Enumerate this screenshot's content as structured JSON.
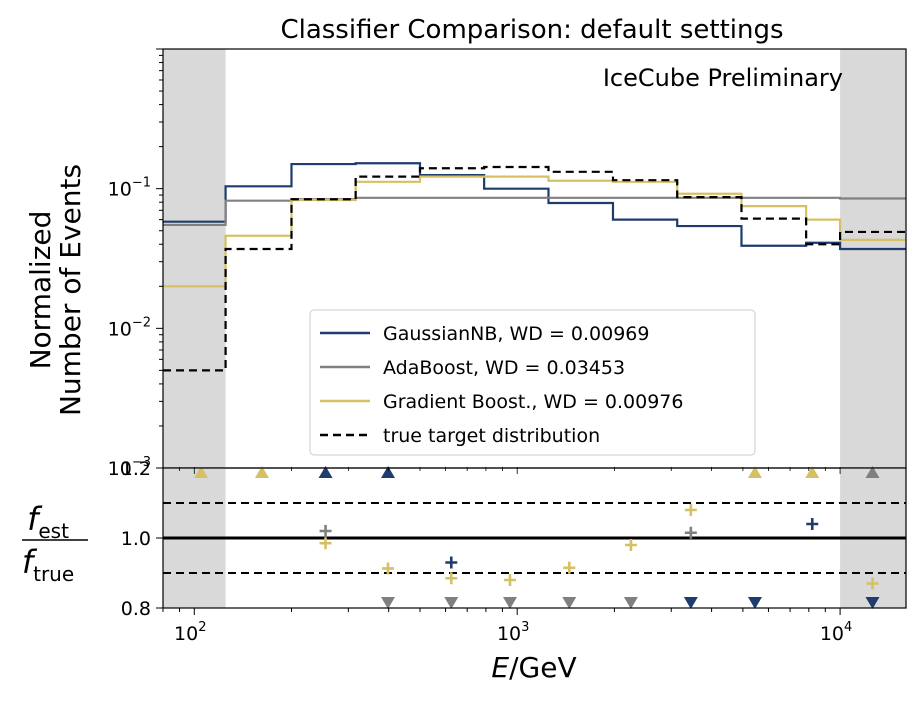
{
  "chart_data": [
    {
      "type": "line",
      "title": "Classifier Comparison: default settings",
      "annotation": "IceCube Preliminary",
      "annotation_color": "#ff0000",
      "ylabel_line1": "Normalized",
      "ylabel_line2": "Number of Events",
      "yscale": "log",
      "xscale": "log",
      "xlim": [
        80,
        16000
      ],
      "ylim": [
        0.001,
        1
      ],
      "ytick_labels": [
        {
          "base": "10",
          "exp": "−1",
          "value": 0.1
        },
        {
          "base": "10",
          "exp": "−2",
          "value": 0.01
        },
        {
          "base": "10",
          "exp": "−3",
          "value": 0.001
        }
      ],
      "shaded_regions": [
        [
          80,
          125
        ],
        [
          10000,
          16000
        ]
      ],
      "bin_edges": [
        80,
        125,
        200,
        316,
        500,
        790,
        1250,
        1980,
        3130,
        4950,
        7850,
        10000,
        16000
      ],
      "series": [
        {
          "name": "GaussianNB, WD = 0.00969",
          "color": "#1f3c6e",
          "dash": false,
          "values": [
            0.058,
            0.104,
            0.15,
            0.152,
            0.125,
            0.1,
            0.079,
            0.06,
            0.054,
            0.039,
            0.041,
            0.037
          ]
        },
        {
          "name": "AdaBoost, WD = 0.03453",
          "color": "#808080",
          "dash": false,
          "values": [
            0.055,
            0.082,
            0.084,
            0.086,
            0.086,
            0.086,
            0.086,
            0.086,
            0.086,
            0.086,
            0.086,
            0.085
          ]
        },
        {
          "name": "Gradient Boost., WD = 0.00976",
          "color": "#d6c064",
          "dash": false,
          "values": [
            0.02,
            0.046,
            0.083,
            0.112,
            0.122,
            0.122,
            0.114,
            0.112,
            0.092,
            0.075,
            0.06,
            0.043
          ]
        },
        {
          "name": "true target distribution",
          "color": "#000000",
          "dash": true,
          "values": [
            0.005,
            0.037,
            0.084,
            0.122,
            0.14,
            0.143,
            0.132,
            0.115,
            0.087,
            0.061,
            0.04,
            0.049
          ]
        }
      ],
      "legend": "lower right"
    },
    {
      "type": "scatter",
      "xlabel": "E/GeV",
      "ylabel_num": "f",
      "ylabel_num_sub": "est",
      "ylabel_den": "f",
      "ylabel_den_sub": "true",
      "ylim": [
        0.8,
        1.2
      ],
      "yticks": [
        "1.2",
        "1.0",
        "0.8"
      ],
      "xticks": [
        {
          "base": "10",
          "exp": "2",
          "value": 100
        },
        {
          "base": "10",
          "exp": "3",
          "value": 1000
        },
        {
          "base": "10",
          "exp": "4",
          "value": 10000
        }
      ],
      "reference_lines": {
        "solid": 1.0,
        "dashed": [
          1.1,
          0.9
        ]
      },
      "points": [
        {
          "series": "Gradient Boost.",
          "x": 105,
          "y": 1.2,
          "marker": "up",
          "color": "#d6c064"
        },
        {
          "series": "Gradient Boost.",
          "x": 162,
          "y": 1.2,
          "marker": "up",
          "color": "#d6c064"
        },
        {
          "series": "GaussianNB",
          "x": 255,
          "y": 1.2,
          "marker": "up",
          "color": "#1f3c6e"
        },
        {
          "series": "GaussianNB",
          "x": 398,
          "y": 1.2,
          "marker": "up",
          "color": "#1f3c6e"
        },
        {
          "series": "Gradient Boost.",
          "x": 5450,
          "y": 1.2,
          "marker": "up",
          "color": "#d6c064"
        },
        {
          "series": "Gradient Boost.",
          "x": 8200,
          "y": 1.2,
          "marker": "up",
          "color": "#d6c064"
        },
        {
          "series": "AdaBoost",
          "x": 12600,
          "y": 1.2,
          "marker": "up",
          "color": "#808080"
        },
        {
          "series": "AdaBoost",
          "x": 255,
          "y": 1.02,
          "marker": "plus",
          "color": "#808080"
        },
        {
          "series": "Gradient Boost.",
          "x": 255,
          "y": 0.985,
          "marker": "plus",
          "color": "#d6c064"
        },
        {
          "series": "Gradient Boost.",
          "x": 398,
          "y": 0.913,
          "marker": "plus",
          "color": "#d6c064"
        },
        {
          "series": "AdaBoost",
          "x": 398,
          "y": 0.8,
          "marker": "down",
          "color": "#808080"
        },
        {
          "series": "GaussianNB",
          "x": 625,
          "y": 0.93,
          "marker": "plus",
          "color": "#1f3c6e"
        },
        {
          "series": "Gradient Boost.",
          "x": 625,
          "y": 0.885,
          "marker": "plus",
          "color": "#d6c064"
        },
        {
          "series": "AdaBoost",
          "x": 625,
          "y": 0.8,
          "marker": "down",
          "color": "#808080"
        },
        {
          "series": "Gradient Boost.",
          "x": 950,
          "y": 0.88,
          "marker": "plus",
          "color": "#d6c064"
        },
        {
          "series": "AdaBoost",
          "x": 950,
          "y": 0.8,
          "marker": "down",
          "color": "#808080"
        },
        {
          "series": "Gradient Boost.",
          "x": 1450,
          "y": 0.915,
          "marker": "plus",
          "color": "#d6c064"
        },
        {
          "series": "AdaBoost",
          "x": 1450,
          "y": 0.8,
          "marker": "down",
          "color": "#808080"
        },
        {
          "series": "Gradient Boost.",
          "x": 2250,
          "y": 0.98,
          "marker": "plus",
          "color": "#d6c064"
        },
        {
          "series": "AdaBoost",
          "x": 2250,
          "y": 0.8,
          "marker": "down",
          "color": "#808080"
        },
        {
          "series": "Gradient Boost.",
          "x": 3450,
          "y": 1.08,
          "marker": "plus",
          "color": "#d6c064"
        },
        {
          "series": "AdaBoost",
          "x": 3450,
          "y": 1.015,
          "marker": "plus",
          "color": "#808080"
        },
        {
          "series": "GaussianNB",
          "x": 3450,
          "y": 0.8,
          "marker": "down",
          "color": "#1f3c6e"
        },
        {
          "series": "GaussianNB",
          "x": 5450,
          "y": 0.8,
          "marker": "down",
          "color": "#1f3c6e"
        },
        {
          "series": "GaussianNB",
          "x": 8200,
          "y": 1.04,
          "marker": "plus",
          "color": "#1f3c6e"
        },
        {
          "series": "Gradient Boost.",
          "x": 12600,
          "y": 0.87,
          "marker": "plus",
          "color": "#d6c064"
        },
        {
          "series": "GaussianNB",
          "x": 12600,
          "y": 0.8,
          "marker": "down",
          "color": "#1f3c6e"
        }
      ]
    }
  ]
}
